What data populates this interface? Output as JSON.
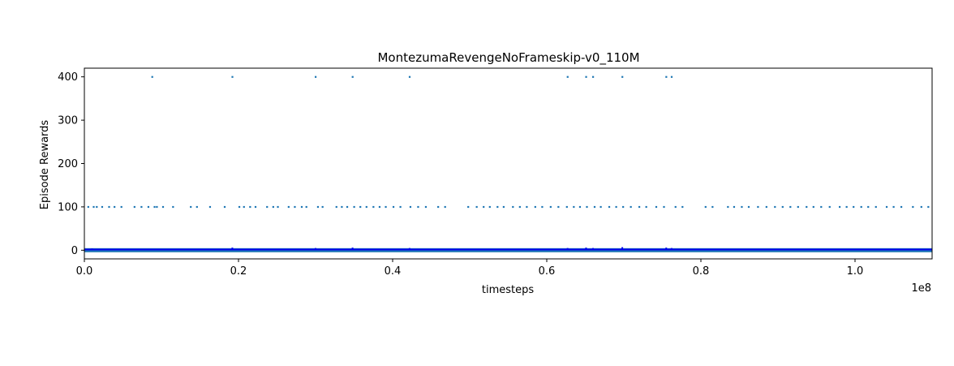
{
  "chart_data": {
    "type": "scatter",
    "title": "MontezumaRevengeNoFrameskip-v0_110M",
    "xlabel": "timesteps",
    "ylabel": "Episode Rewards",
    "x_offset_label": "1e8",
    "xlim": [
      0,
      110000000
    ],
    "ylim": [
      -20,
      420
    ],
    "xticks": [
      {
        "value": 0,
        "label": "0.0"
      },
      {
        "value": 20000000,
        "label": "0.2"
      },
      {
        "value": 40000000,
        "label": "0.4"
      },
      {
        "value": 60000000,
        "label": "0.6"
      },
      {
        "value": 80000000,
        "label": "0.8"
      },
      {
        "value": 100000000,
        "label": "1.0"
      }
    ],
    "yticks": [
      {
        "value": 0,
        "label": "0"
      },
      {
        "value": 100,
        "label": "100"
      },
      {
        "value": 200,
        "label": "200"
      },
      {
        "value": 300,
        "label": "300"
      },
      {
        "value": 400,
        "label": "400"
      }
    ],
    "grid": false,
    "colors": {
      "points": "#1f77b4",
      "band": "#0000ee"
    },
    "series": [
      {
        "reward": 400,
        "x": [
          8800000,
          19200000,
          30000000,
          34800000,
          42200000,
          62700000,
          65100000,
          66000000,
          69800000,
          75500000,
          76200000
        ]
      },
      {
        "reward": 100,
        "x": [
          500000,
          1200000,
          1600000,
          2300000,
          3200000,
          3900000,
          4800000,
          6500000,
          7400000,
          8300000,
          9100000,
          9400000,
          10200000,
          11500000,
          13800000,
          14600000,
          16300000,
          18200000,
          20100000,
          20700000,
          21500000,
          22200000,
          23700000,
          24500000,
          25100000,
          26500000,
          27300000,
          28200000,
          28800000,
          30300000,
          30900000,
          32700000,
          33400000,
          34100000,
          35000000,
          35800000,
          36600000,
          37500000,
          38300000,
          39100000,
          40100000,
          41000000,
          42300000,
          43300000,
          44300000,
          45900000,
          46800000,
          49800000,
          50900000,
          51800000,
          52600000,
          53600000,
          54400000,
          55600000,
          56500000,
          57400000,
          58500000,
          59400000,
          60500000,
          61500000,
          62600000,
          63500000,
          64300000,
          65200000,
          66200000,
          67000000,
          68100000,
          69000000,
          69900000,
          70900000,
          72000000,
          72900000,
          74200000,
          75200000,
          76700000,
          77600000,
          80600000,
          81500000,
          83500000,
          84300000,
          85300000,
          86200000,
          87400000,
          88500000,
          89600000,
          90600000,
          91600000,
          92600000,
          93700000,
          94600000,
          95600000,
          96700000,
          98000000,
          98900000,
          99800000,
          100800000,
          101700000,
          102700000,
          104100000,
          105000000,
          106000000,
          107500000,
          108600000,
          109500000
        ]
      },
      {
        "reward": 0,
        "band": true,
        "x_range": [
          0,
          110000000
        ]
      }
    ],
    "band_spikes": [
      {
        "x": 1000000,
        "y": 4
      },
      {
        "x": 19200000,
        "y": 6
      },
      {
        "x": 30000000,
        "y": 5
      },
      {
        "x": 34800000,
        "y": 6
      },
      {
        "x": 42200000,
        "y": 5
      },
      {
        "x": 62700000,
        "y": 5
      },
      {
        "x": 65100000,
        "y": 6
      },
      {
        "x": 66000000,
        "y": 5
      },
      {
        "x": 69800000,
        "y": 7
      },
      {
        "x": 75500000,
        "y": 6
      },
      {
        "x": 76200000,
        "y": 5
      }
    ]
  }
}
